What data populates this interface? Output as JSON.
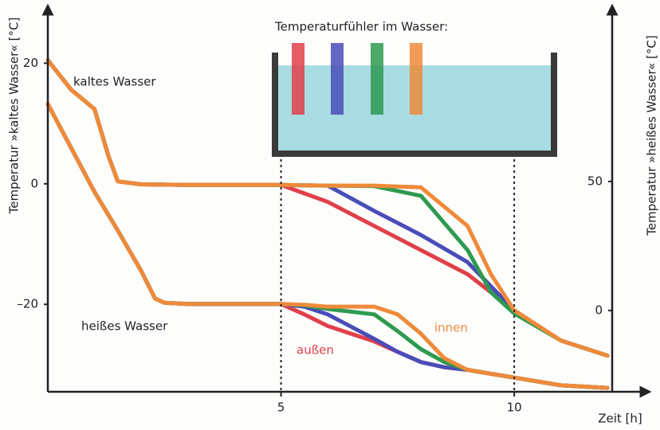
{
  "chart_data": {
    "type": "line",
    "x_label": "Zeit [h]",
    "y_label": "Temperatur »kaltes Wasser« [°C]",
    "y2_label": "Temperatur »heißes Wasser« [°C]",
    "inset_title": "Temperaturfühler im Wasser:",
    "annotations": [
      "kaltes Wasser",
      "heißes Wasser",
      "außen",
      "innen"
    ],
    "xlim": [
      0,
      12.1
    ],
    "xticks": [
      5,
      10
    ],
    "ylim": [
      -34.5,
      28.5
    ],
    "yticks": [
      {
        "value": -20,
        "label": "–20"
      },
      0,
      20
    ],
    "y2lim": [
      -31.5,
      115.7
    ],
    "y2ticks": [
      0,
      50
    ],
    "series": [
      {
        "color": "#e0404a",
        "x": [
          0,
          0.5,
          1,
          1.3,
          1.5,
          2,
          3,
          4,
          5,
          6,
          7,
          8,
          9,
          9.5,
          10,
          11,
          12
        ],
        "values": [
          20.5,
          15.6,
          12.4,
          4.6,
          0.4,
          -0.1,
          -0.2,
          -0.2,
          -0.2,
          -3,
          -7,
          -11,
          -15,
          -18,
          -21,
          -26,
          -28.5
        ]
      },
      {
        "color": "#4a4cb8",
        "x": [
          0,
          0.5,
          1,
          1.3,
          1.5,
          2,
          3,
          4,
          5,
          6,
          7,
          8,
          9,
          9.5,
          10,
          11,
          12
        ],
        "values": [
          20.5,
          15.6,
          12.4,
          4.6,
          0.4,
          -0.1,
          -0.2,
          -0.2,
          -0.2,
          -0.3,
          -4.5,
          -8.5,
          -13,
          -17,
          -21,
          -26,
          -28.5
        ]
      },
      {
        "color": "#2e9a50",
        "x": [
          0,
          0.5,
          1,
          1.3,
          1.5,
          2,
          3,
          4,
          5,
          6,
          7,
          8,
          9,
          9.5,
          10,
          11,
          12
        ],
        "values": [
          20.5,
          15.6,
          12.4,
          4.6,
          0.4,
          -0.1,
          -0.2,
          -0.2,
          -0.2,
          -0.3,
          -0.4,
          -2,
          -11,
          -18,
          -21.5,
          -26,
          -28.5
        ]
      },
      {
        "color": "#ef8a3a",
        "x": [
          0,
          0.5,
          1,
          1.3,
          1.5,
          2,
          3,
          4,
          5,
          6,
          7,
          8,
          9,
          9.5,
          10,
          11,
          12
        ],
        "values": [
          20.5,
          15.6,
          12.4,
          4.6,
          0.4,
          -0.1,
          -0.2,
          -0.2,
          -0.2,
          -0.3,
          -0.3,
          -0.6,
          -7,
          -15,
          -21,
          -26,
          -28.5
        ]
      },
      {
        "color": "#e0404a",
        "axis": "y2",
        "x": [
          0,
          0.5,
          1,
          1.5,
          2,
          2.3,
          2.5,
          3,
          4,
          5,
          5.5,
          6,
          7,
          7.5,
          8,
          8.5,
          9,
          10,
          11,
          12
        ],
        "values": [
          80,
          63,
          46,
          31,
          15.4,
          4.6,
          3,
          2.5,
          2.5,
          2.5,
          -1.5,
          -6,
          -12,
          -16,
          -20,
          -22,
          -23,
          -26,
          -29,
          -30
        ]
      },
      {
        "color": "#4a4cb8",
        "axis": "y2",
        "x": [
          0,
          0.5,
          1,
          1.5,
          2,
          2.3,
          2.5,
          3,
          4,
          5,
          5.5,
          6,
          7,
          7.5,
          8,
          8.5,
          9,
          10,
          11,
          12
        ],
        "values": [
          80,
          63,
          46,
          31,
          15.4,
          4.6,
          3,
          2.5,
          2.5,
          2.5,
          1.5,
          -1.5,
          -11,
          -16,
          -20,
          -22,
          -23,
          -26,
          -29,
          -30
        ]
      },
      {
        "color": "#2e9a50",
        "axis": "y2",
        "x": [
          0,
          0.5,
          1,
          1.5,
          2,
          2.3,
          2.5,
          3,
          4,
          5,
          5.5,
          6,
          7,
          7.5,
          8,
          8.5,
          9,
          10,
          11,
          12
        ],
        "values": [
          80,
          63,
          46,
          31,
          15.4,
          4.6,
          3,
          2.5,
          2.5,
          2.5,
          2,
          0.6,
          -1.5,
          -8,
          -15,
          -20,
          -23,
          -26,
          -29,
          -30
        ]
      },
      {
        "color": "#ef8a3a",
        "axis": "y2",
        "x": [
          0,
          0.5,
          1,
          1.5,
          2,
          2.3,
          2.5,
          3,
          4,
          5,
          5.5,
          6,
          7,
          7.5,
          8,
          8.5,
          9,
          10,
          11,
          12
        ],
        "values": [
          80,
          63,
          46,
          31,
          15.4,
          4.6,
          3,
          2.5,
          2.5,
          2.5,
          2.2,
          1.5,
          1.5,
          -1.5,
          -9,
          -18.5,
          -23,
          -26,
          -29,
          -30
        ]
      }
    ]
  }
}
